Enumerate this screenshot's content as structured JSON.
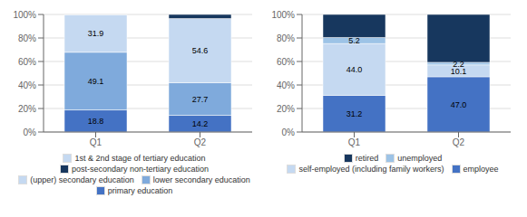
{
  "chart_data": [
    {
      "type": "bar",
      "stacked": true,
      "categories": [
        "Q1",
        "Q2"
      ],
      "series": [
        {
          "name": "primary education",
          "color": "#4472C4",
          "values": [
            18.8,
            14.2
          ],
          "data_labels": true,
          "value_labels": [
            "18.8",
            "14.2"
          ]
        },
        {
          "name": "lower secondary education",
          "color": "#7FAADC",
          "values": [
            49.1,
            27.7
          ],
          "data_labels": true,
          "value_labels": [
            "49.1",
            "27.7"
          ]
        },
        {
          "name": "(upper) secondary education",
          "color": "#C5D9F1",
          "values": [
            31.9,
            54.6
          ],
          "data_labels": true,
          "value_labels": [
            "31.9",
            "54.6"
          ]
        },
        {
          "name": "post-secondary non-tertiary education",
          "color": "#17375E",
          "values": [
            0.0,
            3.5
          ]
        },
        {
          "name": "1st & 2nd stage of tertiary education",
          "color": "#C5D9F1",
          "values": [
            0.2,
            0.0
          ]
        }
      ],
      "ylim": [
        0,
        100
      ],
      "yticks": [
        {
          "value": 0,
          "label": "0%"
        },
        {
          "value": 20,
          "label": "20%"
        },
        {
          "value": 40,
          "label": "40%"
        },
        {
          "value": 60,
          "label": "60%"
        },
        {
          "value": 80,
          "label": "80%"
        },
        {
          "value": 100,
          "label": "100%"
        }
      ],
      "grid": true,
      "legend": "bottom"
    },
    {
      "type": "bar",
      "stacked": true,
      "categories": [
        "Q1",
        "Q2"
      ],
      "series": [
        {
          "name": "employee",
          "color": "#4472C4",
          "values": [
            31.2,
            47.0
          ],
          "data_labels": true,
          "value_labels": [
            "31.2",
            "47.0"
          ]
        },
        {
          "name": "self-employed (including family workers)",
          "color": "#C5D9F1",
          "values": [
            44.0,
            10.1
          ],
          "data_labels": true,
          "value_labels": [
            "44.0",
            "10.1"
          ]
        },
        {
          "name": "unemployed",
          "color": "#9DC3E6",
          "values": [
            5.2,
            2.2
          ],
          "data_labels": true,
          "value_labels": [
            "5.2",
            "2.2"
          ]
        },
        {
          "name": "retired",
          "color": "#17375E",
          "values": [
            19.6,
            40.7
          ]
        }
      ],
      "ylim": [
        0,
        100
      ],
      "yticks": [
        {
          "value": 0,
          "label": "0%"
        },
        {
          "value": 20,
          "label": "20%"
        },
        {
          "value": 40,
          "label": "40%"
        },
        {
          "value": 60,
          "label": "60%"
        },
        {
          "value": 80,
          "label": "80%"
        },
        {
          "value": 100,
          "label": "100%"
        }
      ],
      "grid": true,
      "legend": "bottom"
    }
  ]
}
